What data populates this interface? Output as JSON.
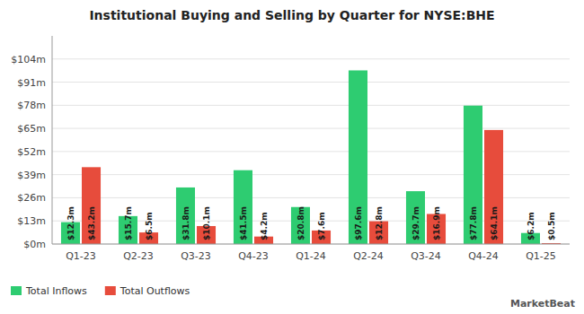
{
  "chart_data": {
    "type": "bar",
    "title": "Institutional Buying and Selling by Quarter for NYSE:BHE",
    "categories": [
      "Q1-23",
      "Q2-23",
      "Q3-23",
      "Q4-23",
      "Q1-24",
      "Q2-24",
      "Q3-24",
      "Q4-24",
      "Q1-25"
    ],
    "series": [
      {
        "name": "Total Inflows",
        "color": "#2ecc71",
        "values": [
          12.3,
          15.7,
          31.8,
          41.5,
          20.8,
          97.6,
          29.7,
          77.8,
          6.2
        ],
        "value_labels": [
          "$12.3m",
          "$15.7m",
          "$31.8m",
          "$41.5m",
          "$20.8m",
          "$97.6m",
          "$29.7m",
          "$77.8m",
          "$6.2m"
        ]
      },
      {
        "name": "Total Outflows",
        "color": "#e74c3c",
        "values": [
          43.2,
          6.5,
          10.1,
          4.2,
          7.6,
          12.8,
          16.9,
          64.1,
          0.5
        ],
        "value_labels": [
          "$43.2m",
          "$6.5m",
          "$10.1m",
          "$4.2m",
          "$7.6m",
          "$12.8m",
          "$16.9m",
          "$64.1m",
          "$0.5m"
        ]
      }
    ],
    "ylim": [
      0,
      117
    ],
    "yticks": [
      {
        "value": 0,
        "label": "$0m"
      },
      {
        "value": 13,
        "label": "$13m"
      },
      {
        "value": 26,
        "label": "$26m"
      },
      {
        "value": 39,
        "label": "$39m"
      },
      {
        "value": 52,
        "label": "$52m"
      },
      {
        "value": 65,
        "label": "$65m"
      },
      {
        "value": 78,
        "label": "$78m"
      },
      {
        "value": 91,
        "label": "$91m"
      },
      {
        "value": 104,
        "label": "$104m"
      }
    ],
    "grid": true,
    "legend": "lower left",
    "data_labels": true,
    "annotations": [
      "MarketBeat"
    ]
  }
}
